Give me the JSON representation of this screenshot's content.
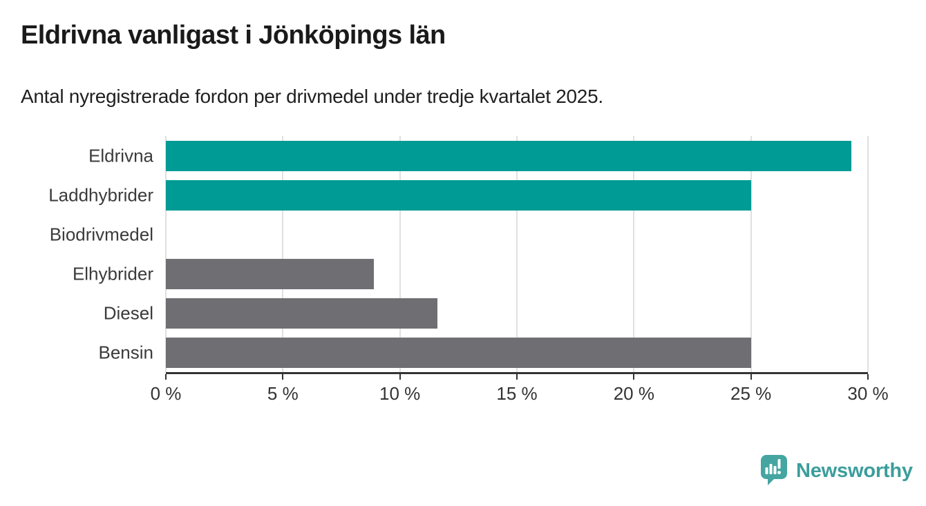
{
  "chart_data": {
    "type": "bar",
    "orientation": "horizontal",
    "title": "Eldrivna vanligast i Jönköpings län",
    "subtitle": "Antal nyregistrerade fordon per drivmedel under tredje kvartalet 2025.",
    "categories": [
      "Eldrivna",
      "Laddhybrider",
      "Biodrivmedel",
      "Elhybrider",
      "Diesel",
      "Bensin"
    ],
    "values": [
      29.3,
      25.0,
      0.0,
      8.9,
      11.6,
      25.0
    ],
    "bar_colors": [
      "#009B94",
      "#009B94",
      "#009B94",
      "#6E6E73",
      "#6E6E73",
      "#6E6E73"
    ],
    "highlight_color": "#009B94",
    "default_color": "#6E6E73",
    "xlim": [
      0,
      30
    ],
    "xticks": [
      0,
      5,
      10,
      15,
      20,
      25,
      30
    ],
    "tick_suffix": " %",
    "grid": "vertical",
    "grid_color": "#E0E0E0",
    "axis_color": "#333333",
    "xlabel": "",
    "ylabel": ""
  },
  "footer": {
    "brand": "Newsworthy",
    "brand_color": "#3B9E9B",
    "logo_icon": "bar-chart-speech-bubble-icon",
    "logo_bubble_color": "#45A5A1"
  }
}
